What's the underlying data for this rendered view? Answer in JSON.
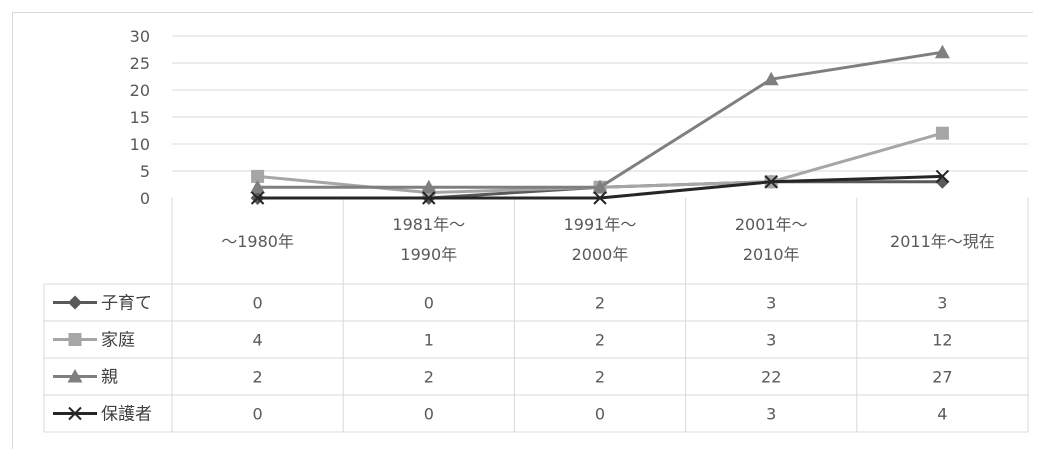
{
  "chart_data": {
    "type": "line",
    "title": "",
    "xlabel": "",
    "ylabel": "",
    "ylim": [
      0,
      30
    ],
    "yticks": [
      "0",
      "5",
      "10",
      "15",
      "20",
      "25",
      "30"
    ],
    "grid": true,
    "legend": "data-table-left",
    "categories": [
      [
        "〜1980年"
      ],
      [
        "1981年〜",
        "1990年"
      ],
      [
        "1991年〜",
        "2000年"
      ],
      [
        "2001年〜",
        "2010年"
      ],
      [
        "2011年〜現在"
      ]
    ],
    "series": [
      {
        "name": "子育て",
        "marker": "diamond",
        "color": "#595959",
        "values": [
          0,
          0,
          2,
          3,
          3
        ],
        "labels": [
          "0",
          "0",
          "2",
          "3",
          "3"
        ]
      },
      {
        "name": "家庭",
        "marker": "square",
        "color": "#a6a6a6",
        "values": [
          4,
          1,
          2,
          3,
          12
        ],
        "labels": [
          "4",
          "1",
          "2",
          "3",
          "12"
        ]
      },
      {
        "name": "親",
        "marker": "triangle",
        "color": "#7f7f7f",
        "values": [
          2,
          2,
          2,
          22,
          27
        ],
        "labels": [
          "2",
          "2",
          "2",
          "22",
          "27"
        ]
      },
      {
        "name": "保護者",
        "marker": "x",
        "color": "#262626",
        "values": [
          0,
          0,
          0,
          3,
          4
        ],
        "labels": [
          "0",
          "0",
          "0",
          "3",
          "4"
        ]
      }
    ]
  }
}
